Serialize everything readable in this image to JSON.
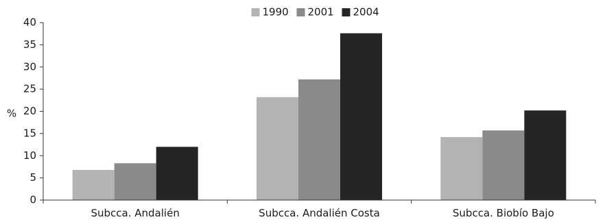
{
  "chart_data": {
    "type": "bar",
    "categories": [
      "Subcca. Andalién",
      "Subcca. Andalién Costa",
      "Subcca. Biobío Bajo"
    ],
    "series": [
      {
        "name": "1990",
        "values": [
          6.8,
          23.2,
          14.2
        ],
        "color": "#b3b3b3"
      },
      {
        "name": "2001",
        "values": [
          8.3,
          27.2,
          15.7
        ],
        "color": "#8a8a8a"
      },
      {
        "name": "2004",
        "values": [
          12.0,
          37.6,
          20.2
        ],
        "color": "#252525"
      }
    ],
    "ylabel": "%",
    "xlabel": "",
    "ylim": [
      0,
      40
    ],
    "yticks": [
      "0",
      "5",
      "10",
      "15",
      "20",
      "25",
      "30",
      "35",
      "40"
    ],
    "grid": false,
    "legend": "top-center"
  }
}
